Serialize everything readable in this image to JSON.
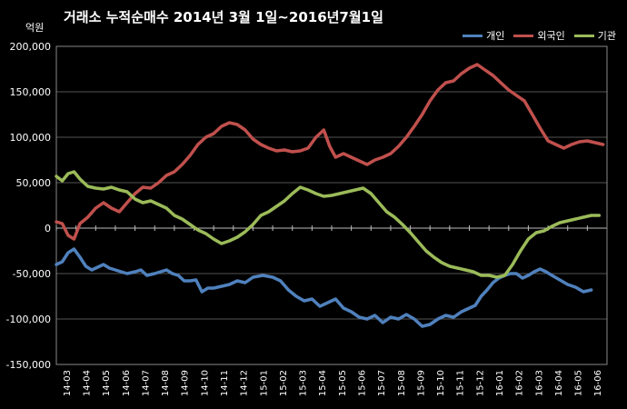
{
  "chart_data": {
    "type": "line",
    "title": "거래소  누적순매수 2014년 3월 1일~2016년7월1일",
    "unit_label": "억원",
    "xlabel": "",
    "ylabel": "",
    "ylim": [
      -150000,
      200000
    ],
    "yticks": [
      200000,
      150000,
      100000,
      50000,
      0,
      -50000,
      -100000,
      -150000
    ],
    "ytick_labels": [
      "200,000",
      "150,000",
      "100,000",
      "50,000",
      "0",
      "-50,000",
      "-100,000",
      "-150,000"
    ],
    "x_tick_labels": [
      "14-03",
      "14-04",
      "14-05",
      "14-06",
      "14-07",
      "14-08",
      "14-09",
      "14-10",
      "14-11",
      "14-12",
      "15-01",
      "15-02",
      "15-03",
      "15-04",
      "15-05",
      "15-06",
      "15-07",
      "15-08",
      "15-09",
      "15-10",
      "15-11",
      "15-12",
      "16-01",
      "16-02",
      "16-03",
      "16-04",
      "16-05",
      "16-06"
    ],
    "grid": true,
    "legend_position": "top-right",
    "series": [
      {
        "name": "개인",
        "color": "#4f81bd",
        "points": [
          [
            0,
            -40000
          ],
          [
            0.3,
            -37000
          ],
          [
            0.6,
            -27000
          ],
          [
            0.9,
            -23000
          ],
          [
            1.2,
            -32000
          ],
          [
            1.5,
            -42000
          ],
          [
            1.8,
            -46000
          ],
          [
            2.1,
            -43000
          ],
          [
            2.4,
            -40000
          ],
          [
            2.7,
            -44000
          ],
          [
            3.0,
            -46000
          ],
          [
            3.3,
            -48000
          ],
          [
            3.6,
            -50000
          ],
          [
            4.0,
            -48000
          ],
          [
            4.3,
            -46000
          ],
          [
            4.6,
            -52000
          ],
          [
            5.0,
            -50000
          ],
          [
            5.3,
            -48000
          ],
          [
            5.6,
            -46000
          ],
          [
            5.9,
            -50000
          ],
          [
            6.2,
            -52000
          ],
          [
            6.5,
            -58000
          ],
          [
            6.8,
            -58000
          ],
          [
            7.1,
            -57000
          ],
          [
            7.4,
            -70000
          ],
          [
            7.7,
            -66000
          ],
          [
            8.0,
            -66000
          ],
          [
            8.4,
            -64000
          ],
          [
            8.8,
            -62000
          ],
          [
            9.2,
            -58000
          ],
          [
            9.6,
            -60000
          ],
          [
            10.0,
            -54000
          ],
          [
            10.5,
            -52000
          ],
          [
            11.0,
            -54000
          ],
          [
            11.4,
            -58000
          ],
          [
            11.8,
            -68000
          ],
          [
            12.2,
            -75000
          ],
          [
            12.6,
            -80000
          ],
          [
            13.0,
            -78000
          ],
          [
            13.4,
            -86000
          ],
          [
            13.8,
            -82000
          ],
          [
            14.2,
            -78000
          ],
          [
            14.6,
            -88000
          ],
          [
            15.0,
            -92000
          ],
          [
            15.4,
            -98000
          ],
          [
            15.8,
            -100000
          ],
          [
            16.2,
            -96000
          ],
          [
            16.6,
            -104000
          ],
          [
            17.0,
            -98000
          ],
          [
            17.4,
            -100000
          ],
          [
            17.8,
            -95000
          ],
          [
            18.2,
            -100000
          ],
          [
            18.6,
            -108000
          ],
          [
            19.0,
            -106000
          ],
          [
            19.4,
            -100000
          ],
          [
            19.8,
            -96000
          ],
          [
            20.2,
            -98000
          ],
          [
            20.6,
            -92000
          ],
          [
            21.0,
            -88000
          ],
          [
            21.3,
            -85000
          ],
          [
            21.6,
            -75000
          ],
          [
            21.9,
            -68000
          ],
          [
            22.2,
            -60000
          ],
          [
            22.5,
            -55000
          ],
          [
            22.8,
            -52000
          ],
          [
            23.1,
            -50000
          ],
          [
            23.4,
            -50000
          ],
          [
            23.7,
            -55000
          ],
          [
            24.0,
            -52000
          ],
          [
            24.3,
            -48000
          ],
          [
            24.6,
            -45000
          ],
          [
            24.9,
            -48000
          ],
          [
            25.2,
            -52000
          ],
          [
            25.6,
            -57000
          ],
          [
            26.0,
            -62000
          ],
          [
            26.4,
            -65000
          ],
          [
            26.8,
            -70000
          ],
          [
            27.2,
            -68000
          ]
        ]
      },
      {
        "name": "외국인",
        "color": "#c0504d",
        "points": [
          [
            0,
            7000
          ],
          [
            0.3,
            5000
          ],
          [
            0.6,
            -8000
          ],
          [
            0.9,
            -12000
          ],
          [
            1.2,
            5000
          ],
          [
            1.6,
            12000
          ],
          [
            2.0,
            22000
          ],
          [
            2.4,
            28000
          ],
          [
            2.8,
            22000
          ],
          [
            3.2,
            18000
          ],
          [
            3.6,
            28000
          ],
          [
            4.0,
            38000
          ],
          [
            4.4,
            45000
          ],
          [
            4.8,
            44000
          ],
          [
            5.2,
            50000
          ],
          [
            5.6,
            58000
          ],
          [
            6.0,
            62000
          ],
          [
            6.4,
            70000
          ],
          [
            6.8,
            80000
          ],
          [
            7.2,
            92000
          ],
          [
            7.6,
            100000
          ],
          [
            8.0,
            104000
          ],
          [
            8.4,
            112000
          ],
          [
            8.8,
            116000
          ],
          [
            9.2,
            114000
          ],
          [
            9.6,
            108000
          ],
          [
            10.0,
            98000
          ],
          [
            10.4,
            92000
          ],
          [
            10.8,
            88000
          ],
          [
            11.2,
            85000
          ],
          [
            11.6,
            86000
          ],
          [
            12.0,
            84000
          ],
          [
            12.4,
            85000
          ],
          [
            12.8,
            88000
          ],
          [
            13.2,
            100000
          ],
          [
            13.6,
            108000
          ],
          [
            13.9,
            90000
          ],
          [
            14.2,
            78000
          ],
          [
            14.6,
            82000
          ],
          [
            15.0,
            78000
          ],
          [
            15.4,
            74000
          ],
          [
            15.8,
            70000
          ],
          [
            16.2,
            75000
          ],
          [
            16.6,
            78000
          ],
          [
            17.0,
            82000
          ],
          [
            17.4,
            90000
          ],
          [
            17.8,
            100000
          ],
          [
            18.2,
            112000
          ],
          [
            18.6,
            125000
          ],
          [
            19.0,
            140000
          ],
          [
            19.4,
            152000
          ],
          [
            19.8,
            160000
          ],
          [
            20.2,
            162000
          ],
          [
            20.6,
            170000
          ],
          [
            21.0,
            176000
          ],
          [
            21.4,
            180000
          ],
          [
            21.8,
            174000
          ],
          [
            22.2,
            168000
          ],
          [
            22.6,
            160000
          ],
          [
            23.0,
            152000
          ],
          [
            23.4,
            146000
          ],
          [
            23.8,
            140000
          ],
          [
            24.2,
            125000
          ],
          [
            24.6,
            110000
          ],
          [
            25.0,
            96000
          ],
          [
            25.4,
            92000
          ],
          [
            25.8,
            88000
          ],
          [
            26.2,
            92000
          ],
          [
            26.6,
            95000
          ],
          [
            27.0,
            96000
          ],
          [
            27.4,
            94000
          ],
          [
            27.8,
            92000
          ]
        ]
      },
      {
        "name": "기관",
        "color": "#9bbb59",
        "points": [
          [
            0,
            57000
          ],
          [
            0.3,
            52000
          ],
          [
            0.6,
            60000
          ],
          [
            0.9,
            62000
          ],
          [
            1.2,
            54000
          ],
          [
            1.6,
            46000
          ],
          [
            2.0,
            44000
          ],
          [
            2.4,
            43000
          ],
          [
            2.8,
            45000
          ],
          [
            3.2,
            42000
          ],
          [
            3.6,
            40000
          ],
          [
            4.0,
            32000
          ],
          [
            4.4,
            28000
          ],
          [
            4.8,
            30000
          ],
          [
            5.2,
            26000
          ],
          [
            5.6,
            22000
          ],
          [
            6.0,
            14000
          ],
          [
            6.4,
            10000
          ],
          [
            6.8,
            4000
          ],
          [
            7.2,
            -2000
          ],
          [
            7.6,
            -6000
          ],
          [
            8.0,
            -12000
          ],
          [
            8.4,
            -17000
          ],
          [
            8.8,
            -14000
          ],
          [
            9.2,
            -10000
          ],
          [
            9.6,
            -4000
          ],
          [
            10.0,
            4000
          ],
          [
            10.4,
            14000
          ],
          [
            10.8,
            18000
          ],
          [
            11.2,
            24000
          ],
          [
            11.6,
            30000
          ],
          [
            12.0,
            38000
          ],
          [
            12.4,
            45000
          ],
          [
            12.8,
            42000
          ],
          [
            13.2,
            38000
          ],
          [
            13.6,
            35000
          ],
          [
            14.0,
            36000
          ],
          [
            14.4,
            38000
          ],
          [
            14.8,
            40000
          ],
          [
            15.2,
            42000
          ],
          [
            15.6,
            44000
          ],
          [
            16.0,
            38000
          ],
          [
            16.4,
            28000
          ],
          [
            16.8,
            18000
          ],
          [
            17.2,
            12000
          ],
          [
            17.6,
            4000
          ],
          [
            18.0,
            -5000
          ],
          [
            18.4,
            -15000
          ],
          [
            18.8,
            -25000
          ],
          [
            19.2,
            -32000
          ],
          [
            19.6,
            -38000
          ],
          [
            20.0,
            -42000
          ],
          [
            20.4,
            -44000
          ],
          [
            20.8,
            -46000
          ],
          [
            21.2,
            -48000
          ],
          [
            21.6,
            -52000
          ],
          [
            22.0,
            -52000
          ],
          [
            22.4,
            -54000
          ],
          [
            22.8,
            -52000
          ],
          [
            23.2,
            -40000
          ],
          [
            23.6,
            -25000
          ],
          [
            24.0,
            -12000
          ],
          [
            24.4,
            -5000
          ],
          [
            24.8,
            -3000
          ],
          [
            25.2,
            2000
          ],
          [
            25.6,
            6000
          ],
          [
            26.0,
            8000
          ],
          [
            26.4,
            10000
          ],
          [
            26.8,
            12000
          ],
          [
            27.2,
            14000
          ],
          [
            27.6,
            14000
          ]
        ]
      }
    ]
  }
}
